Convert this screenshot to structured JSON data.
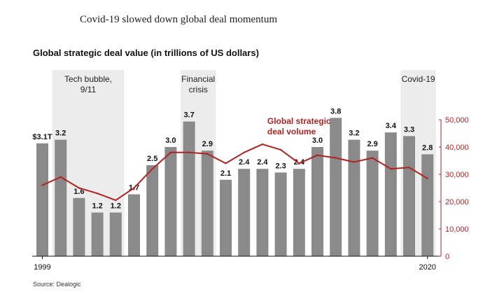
{
  "headline": "Covid-19 slowed down global deal momentum",
  "source": "Source: Dealogic",
  "colors": {
    "bar": "#8a8a8a",
    "line": "#b22222",
    "shade": "#ececec",
    "axis": "#111111"
  },
  "chart_data": {
    "type": "bar",
    "title": "Global strategic deal value (in trillions of US dollars)",
    "x": [
      1999,
      2000,
      2001,
      2002,
      2003,
      2004,
      2005,
      2006,
      2007,
      2008,
      2009,
      2010,
      2011,
      2012,
      2013,
      2014,
      2015,
      2016,
      2017,
      2018,
      2019,
      2020
    ],
    "x_tick_labels": [
      "1999",
      "2020"
    ],
    "series": [
      {
        "type": "bar",
        "values": [
          3.1,
          3.2,
          1.6,
          1.2,
          1.2,
          1.7,
          2.5,
          3.0,
          3.7,
          2.9,
          2.1,
          2.4,
          2.4,
          2.3,
          2.4,
          3.0,
          3.8,
          3.2,
          2.9,
          3.4,
          3.3,
          2.8
        ],
        "labels": [
          "$3.1T",
          "3.2",
          "1.6",
          "1.2",
          "1.2",
          "1.7",
          "2.5",
          "3.0",
          "3.7",
          "2.9",
          "2.1",
          "2.4",
          "2.4",
          "2.3",
          "2.4",
          "3.0",
          "3.8",
          "3.2",
          "2.9",
          "3.4",
          "3.3",
          "2.8"
        ]
      },
      {
        "name": "Global strategic deal volume",
        "type": "line",
        "axis": "right",
        "values": [
          26000,
          29000,
          25000,
          23000,
          20500,
          25000,
          32000,
          38000,
          38000,
          37500,
          34000,
          38000,
          41000,
          39000,
          34000,
          37000,
          36000,
          34500,
          36000,
          32000,
          32500,
          28500
        ]
      }
    ],
    "y_left_range": [
      0,
      5.0
    ],
    "y_right": {
      "range": [
        0,
        50000
      ],
      "ticks": [
        0,
        10000,
        20000,
        30000,
        40000,
        50000
      ],
      "tick_labels": [
        "0",
        "10,000",
        "20,000",
        "30,000",
        "40,000",
        "50,000"
      ]
    },
    "shaded_periods": [
      {
        "label": "Tech bubble, 9/11",
        "label_lines": [
          "Tech bubble,",
          "9/11"
        ],
        "start": 2000,
        "end": 2003
      },
      {
        "label": "Financial crisis",
        "label_lines": [
          "Financial",
          "crisis"
        ],
        "start": 2007,
        "end": 2008
      },
      {
        "label": "Covid-19",
        "label_lines": [
          "Covid-19"
        ],
        "start": 2019,
        "end": 2020
      }
    ],
    "line_label_lines": [
      "Global strategic",
      "deal volume"
    ],
    "legend": "none",
    "grid": false
  }
}
